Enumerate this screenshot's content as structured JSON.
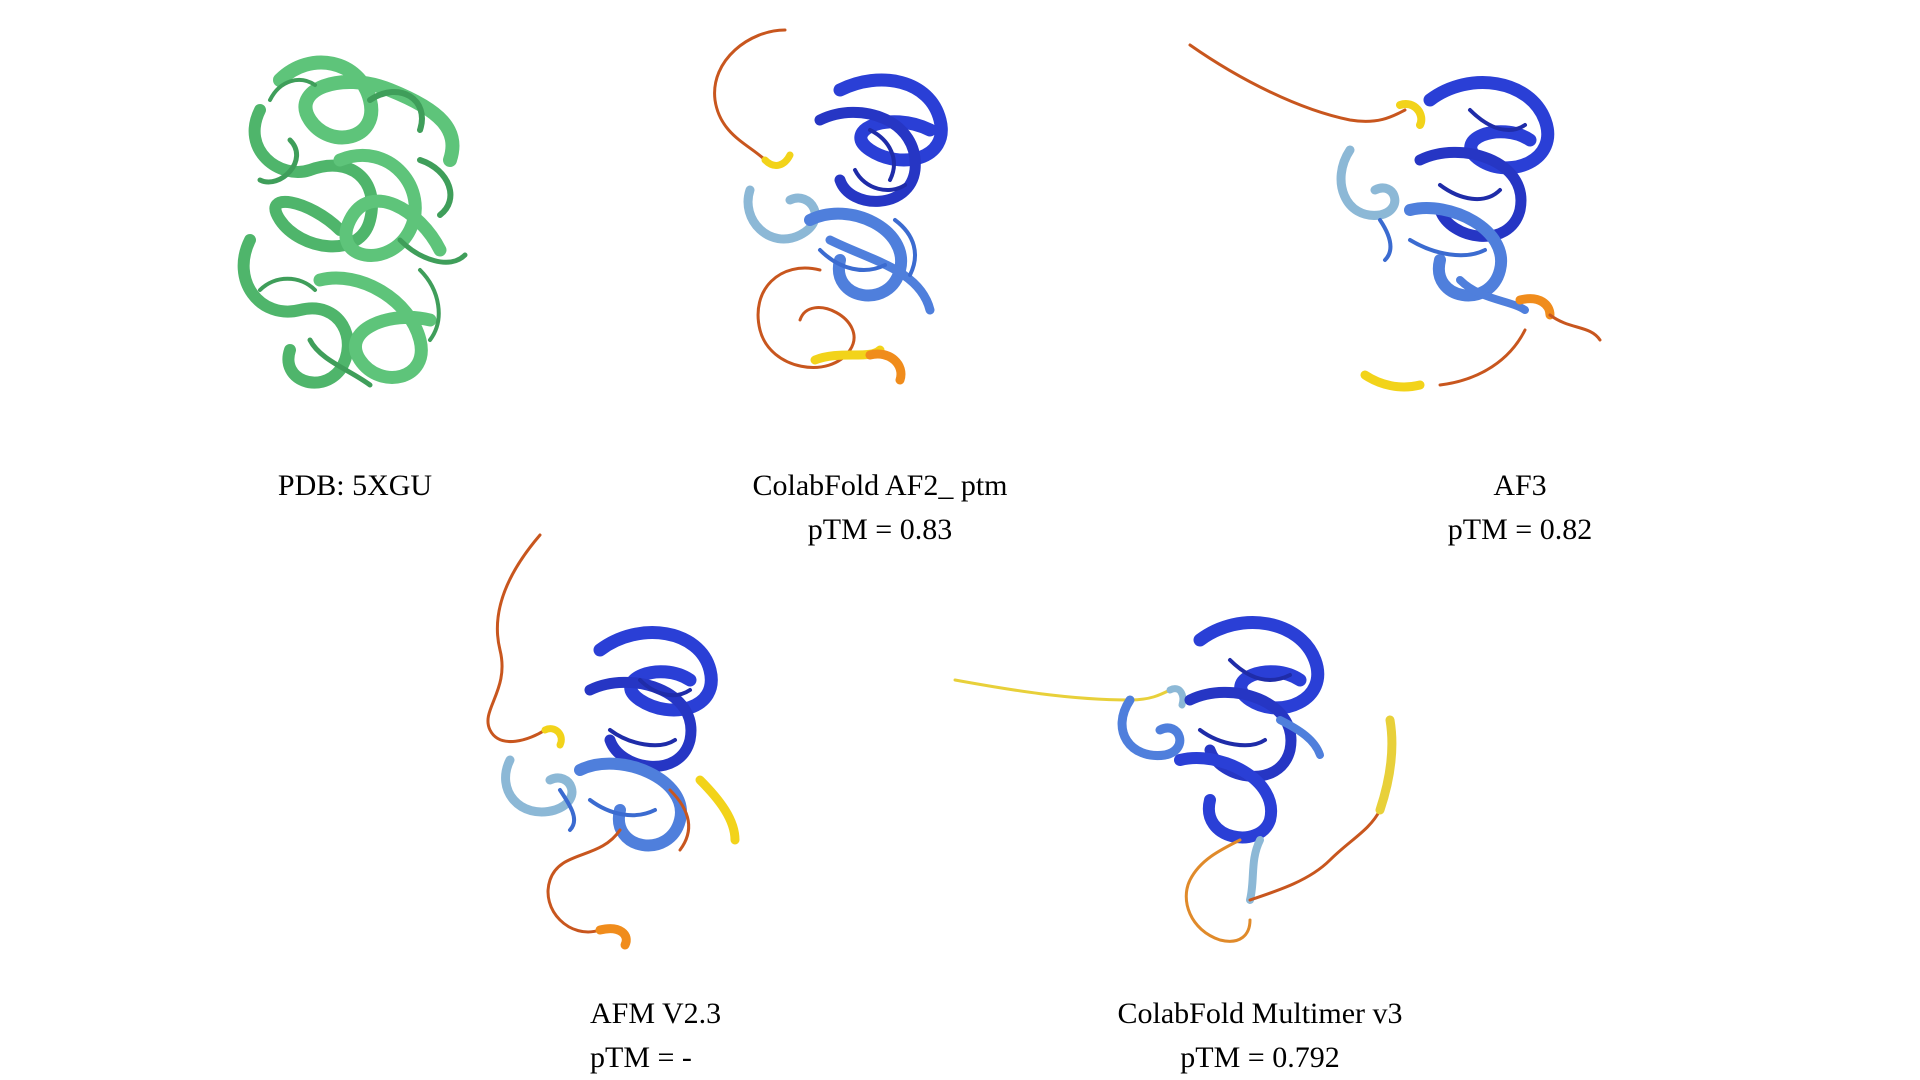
{
  "figure": {
    "panels": [
      {
        "id": "pdb",
        "title": "PDB: 5XGU",
        "subtitle": "",
        "coloring": "single",
        "colors": {
          "main": "#5ec47a",
          "dark": "#3f9e5a"
        }
      },
      {
        "id": "colabfold_af2",
        "title": "ColabFold AF2_ ptm",
        "subtitle": "pTM = 0.83",
        "coloring": "plddt",
        "colors": {
          "core": "#2a3fd6",
          "mid": "#4f7fdc",
          "light": "#8cb8d6",
          "yellow": "#f2d31a",
          "orange": "#f08c1c",
          "loop": "#c8561e"
        }
      },
      {
        "id": "af3",
        "title": "AF3",
        "subtitle": "pTM = 0.82",
        "coloring": "plddt",
        "colors": {
          "core": "#2a3fd6",
          "mid": "#4f7fdc",
          "light": "#8cb8d6",
          "yellow": "#f2d31a",
          "orange": "#f08c1c",
          "loop": "#c8561e"
        }
      },
      {
        "id": "afm_v23",
        "title": "AFM V2.3",
        "subtitle": "pTM = -",
        "coloring": "plddt",
        "colors": {
          "core": "#2a3fd6",
          "mid": "#4f7fdc",
          "light": "#8cb8d6",
          "yellow": "#f2d31a",
          "orange": "#f08c1c",
          "loop": "#c8561e"
        }
      },
      {
        "id": "colabfold_multimer_v3",
        "title": "ColabFold Multimer v3",
        "subtitle": "pTM = 0.792",
        "coloring": "plddt",
        "colors": {
          "core": "#2a3fd6",
          "mid": "#4f7fdc",
          "light": "#8cb8d6",
          "yellow": "#e8d03a",
          "orange": "#e08a2a",
          "loop": "#c8561e"
        }
      }
    ]
  }
}
